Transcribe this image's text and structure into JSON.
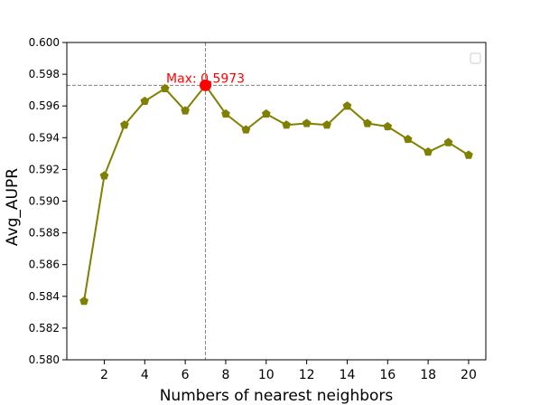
{
  "chart_data": {
    "type": "line",
    "xlabel": "Numbers of nearest neighbors",
    "ylabel": "Avg_AUPR",
    "xlim": [
      0.15,
      20.85
    ],
    "ylim": [
      0.58,
      0.6
    ],
    "x_ticks": [
      2,
      4,
      6,
      8,
      10,
      12,
      14,
      16,
      18,
      20
    ],
    "y_ticks": [
      0.58,
      0.582,
      0.584,
      0.586,
      0.588,
      0.59,
      0.592,
      0.594,
      0.596,
      0.598,
      0.6
    ],
    "x_tick_labels": [
      "2",
      "4",
      "6",
      "8",
      "10",
      "12",
      "14",
      "16",
      "18",
      "20"
    ],
    "y_tick_labels": [
      "0.580",
      "0.582",
      "0.584",
      "0.586",
      "0.588",
      "0.590",
      "0.592",
      "0.594",
      "0.596",
      "0.598",
      "0.600"
    ],
    "series": [
      {
        "x": [
          1,
          2,
          3,
          4,
          5,
          6,
          7,
          8,
          9,
          10,
          11,
          12,
          13,
          14,
          15,
          16,
          17,
          18,
          19,
          20
        ],
        "values": [
          0.5837,
          0.5916,
          0.5948,
          0.5963,
          0.5971,
          0.5957,
          0.5973,
          0.5955,
          0.5945,
          0.5955,
          0.5948,
          0.5949,
          0.5948,
          0.596,
          0.5949,
          0.5947,
          0.5939,
          0.5931,
          0.5937,
          0.5929
        ],
        "color": "#808000",
        "marker": "pentagon"
      }
    ],
    "max_point": {
      "x": 7,
      "y": 0.5973,
      "color": "#ff0000"
    },
    "annotation": {
      "text": "Max: 0.5973",
      "color": "#ff0000"
    },
    "reference_lines": {
      "vertical_x": 7,
      "horizontal_y": 0.5973,
      "style": "dashed",
      "color": "#808080"
    },
    "legend": {
      "placement": "top-right",
      "entries": []
    },
    "grid": false
  }
}
